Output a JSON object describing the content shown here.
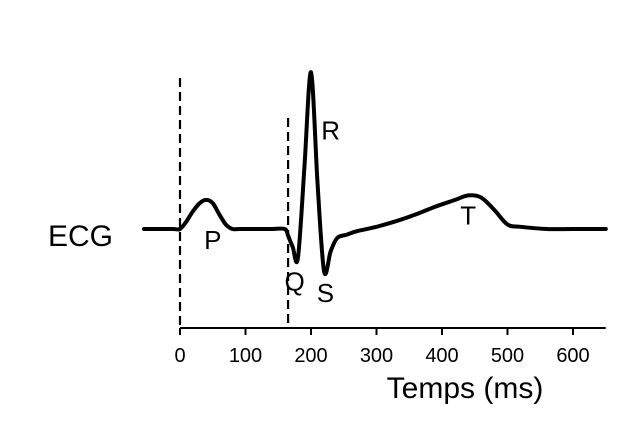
{
  "chart_data": {
    "type": "line",
    "series_label": "ECG",
    "xlabel": "Temps (ms)",
    "xlim": [
      0,
      650
    ],
    "x_ticks": [
      0,
      100,
      200,
      300,
      400,
      500,
      600
    ],
    "x_tick_labels": [
      "0",
      "100",
      "200",
      "300",
      "400",
      "500",
      "600"
    ],
    "ylim": [
      -0.6,
      1.6
    ],
    "grid": false,
    "legend": "none",
    "line_color": "#000000",
    "series": [
      {
        "x": [
          -55,
          -30,
          -10,
          0,
          10,
          20,
          30,
          40,
          50,
          60,
          70,
          80,
          90,
          100,
          120,
          140,
          160,
          165,
          172,
          180,
          190,
          200,
          210,
          220,
          230,
          240,
          255,
          270,
          300,
          330,
          360,
          390,
          420,
          440,
          460,
          480,
          500,
          520,
          560,
          600,
          650
        ],
        "y": [
          0.0,
          0.0,
          0.0,
          0.0,
          0.07,
          0.16,
          0.23,
          0.26,
          0.23,
          0.13,
          0.04,
          0.0,
          0.0,
          0.0,
          0.0,
          0.0,
          0.0,
          -0.06,
          -0.16,
          -0.26,
          0.55,
          1.4,
          0.4,
          -0.38,
          -0.2,
          -0.08,
          -0.05,
          -0.02,
          0.02,
          0.07,
          0.13,
          0.2,
          0.26,
          0.3,
          0.28,
          0.17,
          0.04,
          0.02,
          0.0,
          0.0,
          0.0
        ]
      }
    ],
    "vertical_markers": [
      0,
      165
    ],
    "annotations": [
      {
        "text": "P",
        "x": 50,
        "y": -0.18
      },
      {
        "text": "Q",
        "x": 175,
        "y": -0.55
      },
      {
        "text": "R",
        "x": 230,
        "y": 0.8
      },
      {
        "text": "S",
        "x": 222,
        "y": -0.65
      },
      {
        "text": "T",
        "x": 440,
        "y": 0.04
      }
    ]
  }
}
